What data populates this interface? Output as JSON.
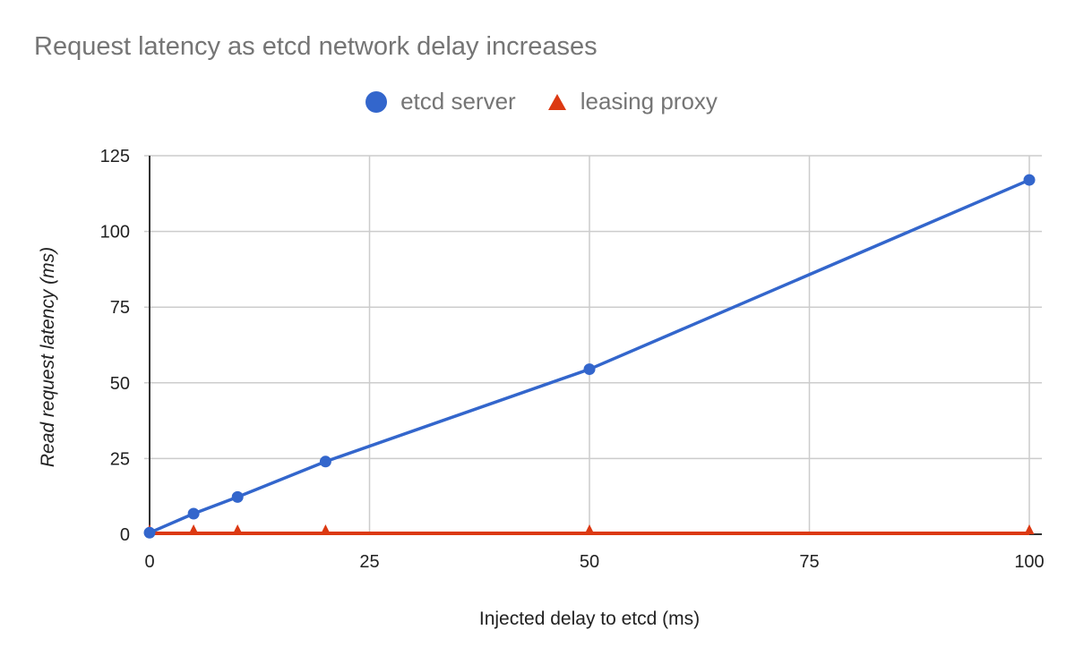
{
  "chart_data": {
    "type": "line",
    "title": "Request latency as etcd network delay increases",
    "xlabel": "Injected delay to etcd (ms)",
    "ylabel": "Read request latency (ms)",
    "xlim": [
      0,
      100
    ],
    "ylim": [
      0,
      125
    ],
    "xticks": [
      "0",
      "25",
      "50",
      "75",
      "100"
    ],
    "yticks": [
      "0",
      "25",
      "50",
      "75",
      "100",
      "125"
    ],
    "grid": true,
    "legend_position": "top",
    "series": [
      {
        "name": "etcd server",
        "color": "#3366cc",
        "marker": "circle",
        "x": [
          0,
          5,
          10,
          20,
          50,
          100
        ],
        "y": [
          0.5,
          6.8,
          12.3,
          24,
          54.5,
          117
        ]
      },
      {
        "name": "leasing proxy",
        "color": "#dc3912",
        "marker": "triangle",
        "x": [
          0,
          5,
          10,
          20,
          50,
          100
        ],
        "y": [
          0.3,
          0.3,
          0.3,
          0.3,
          0.3,
          0.3
        ]
      }
    ]
  }
}
